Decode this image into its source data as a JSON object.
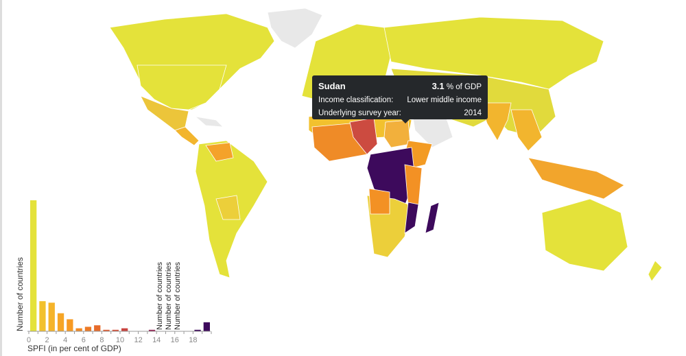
{
  "tooltip": {
    "country": "Sudan",
    "value": "3.1",
    "unit": "% of GDP",
    "income_label": "Income classification:",
    "income_value": "Lower middle income",
    "year_label": "Underlying survey year:",
    "year_value": "2014"
  },
  "colors": {
    "low": "#e4e23a",
    "mid": "#f5a623",
    "high": "#e1612c",
    "red": "#c8433f",
    "max": "#3d0a5c",
    "nodata": "#e8e8e8"
  },
  "chart_data": {
    "type": "bar",
    "title": "",
    "xlabel": "SPFI (in per cent of GDP)",
    "ylabel": "Number of countries",
    "hover_label_repeated": "Number of countries",
    "xlim": [
      0,
      20
    ],
    "xticks": [
      "0",
      "2",
      "4",
      "6",
      "8",
      "10",
      "12",
      "14",
      "16",
      "18"
    ],
    "bins": [
      0,
      1,
      2,
      3,
      4,
      5,
      6,
      7,
      8,
      9,
      10,
      11,
      12,
      13,
      14,
      15,
      16,
      17,
      18,
      19
    ],
    "values": [
      87,
      20,
      19,
      12,
      8,
      2,
      3,
      4,
      1,
      1,
      2,
      0,
      0,
      1,
      0,
      0,
      0,
      0,
      1,
      6
    ],
    "bar_colors": [
      "#e4e23a",
      "#f2c12e",
      "#f5b42a",
      "#f6a525",
      "#f79a22",
      "#f18a24",
      "#ec7a27",
      "#e66b2b",
      "#de5d33",
      "#d4513a",
      "#c8433f",
      "#b93648",
      "#a82c50",
      "#962457",
      "#7e1d5c",
      "#6c165e",
      "#59105e",
      "#470c5e",
      "#3d0a5c",
      "#3d0a5c"
    ]
  }
}
